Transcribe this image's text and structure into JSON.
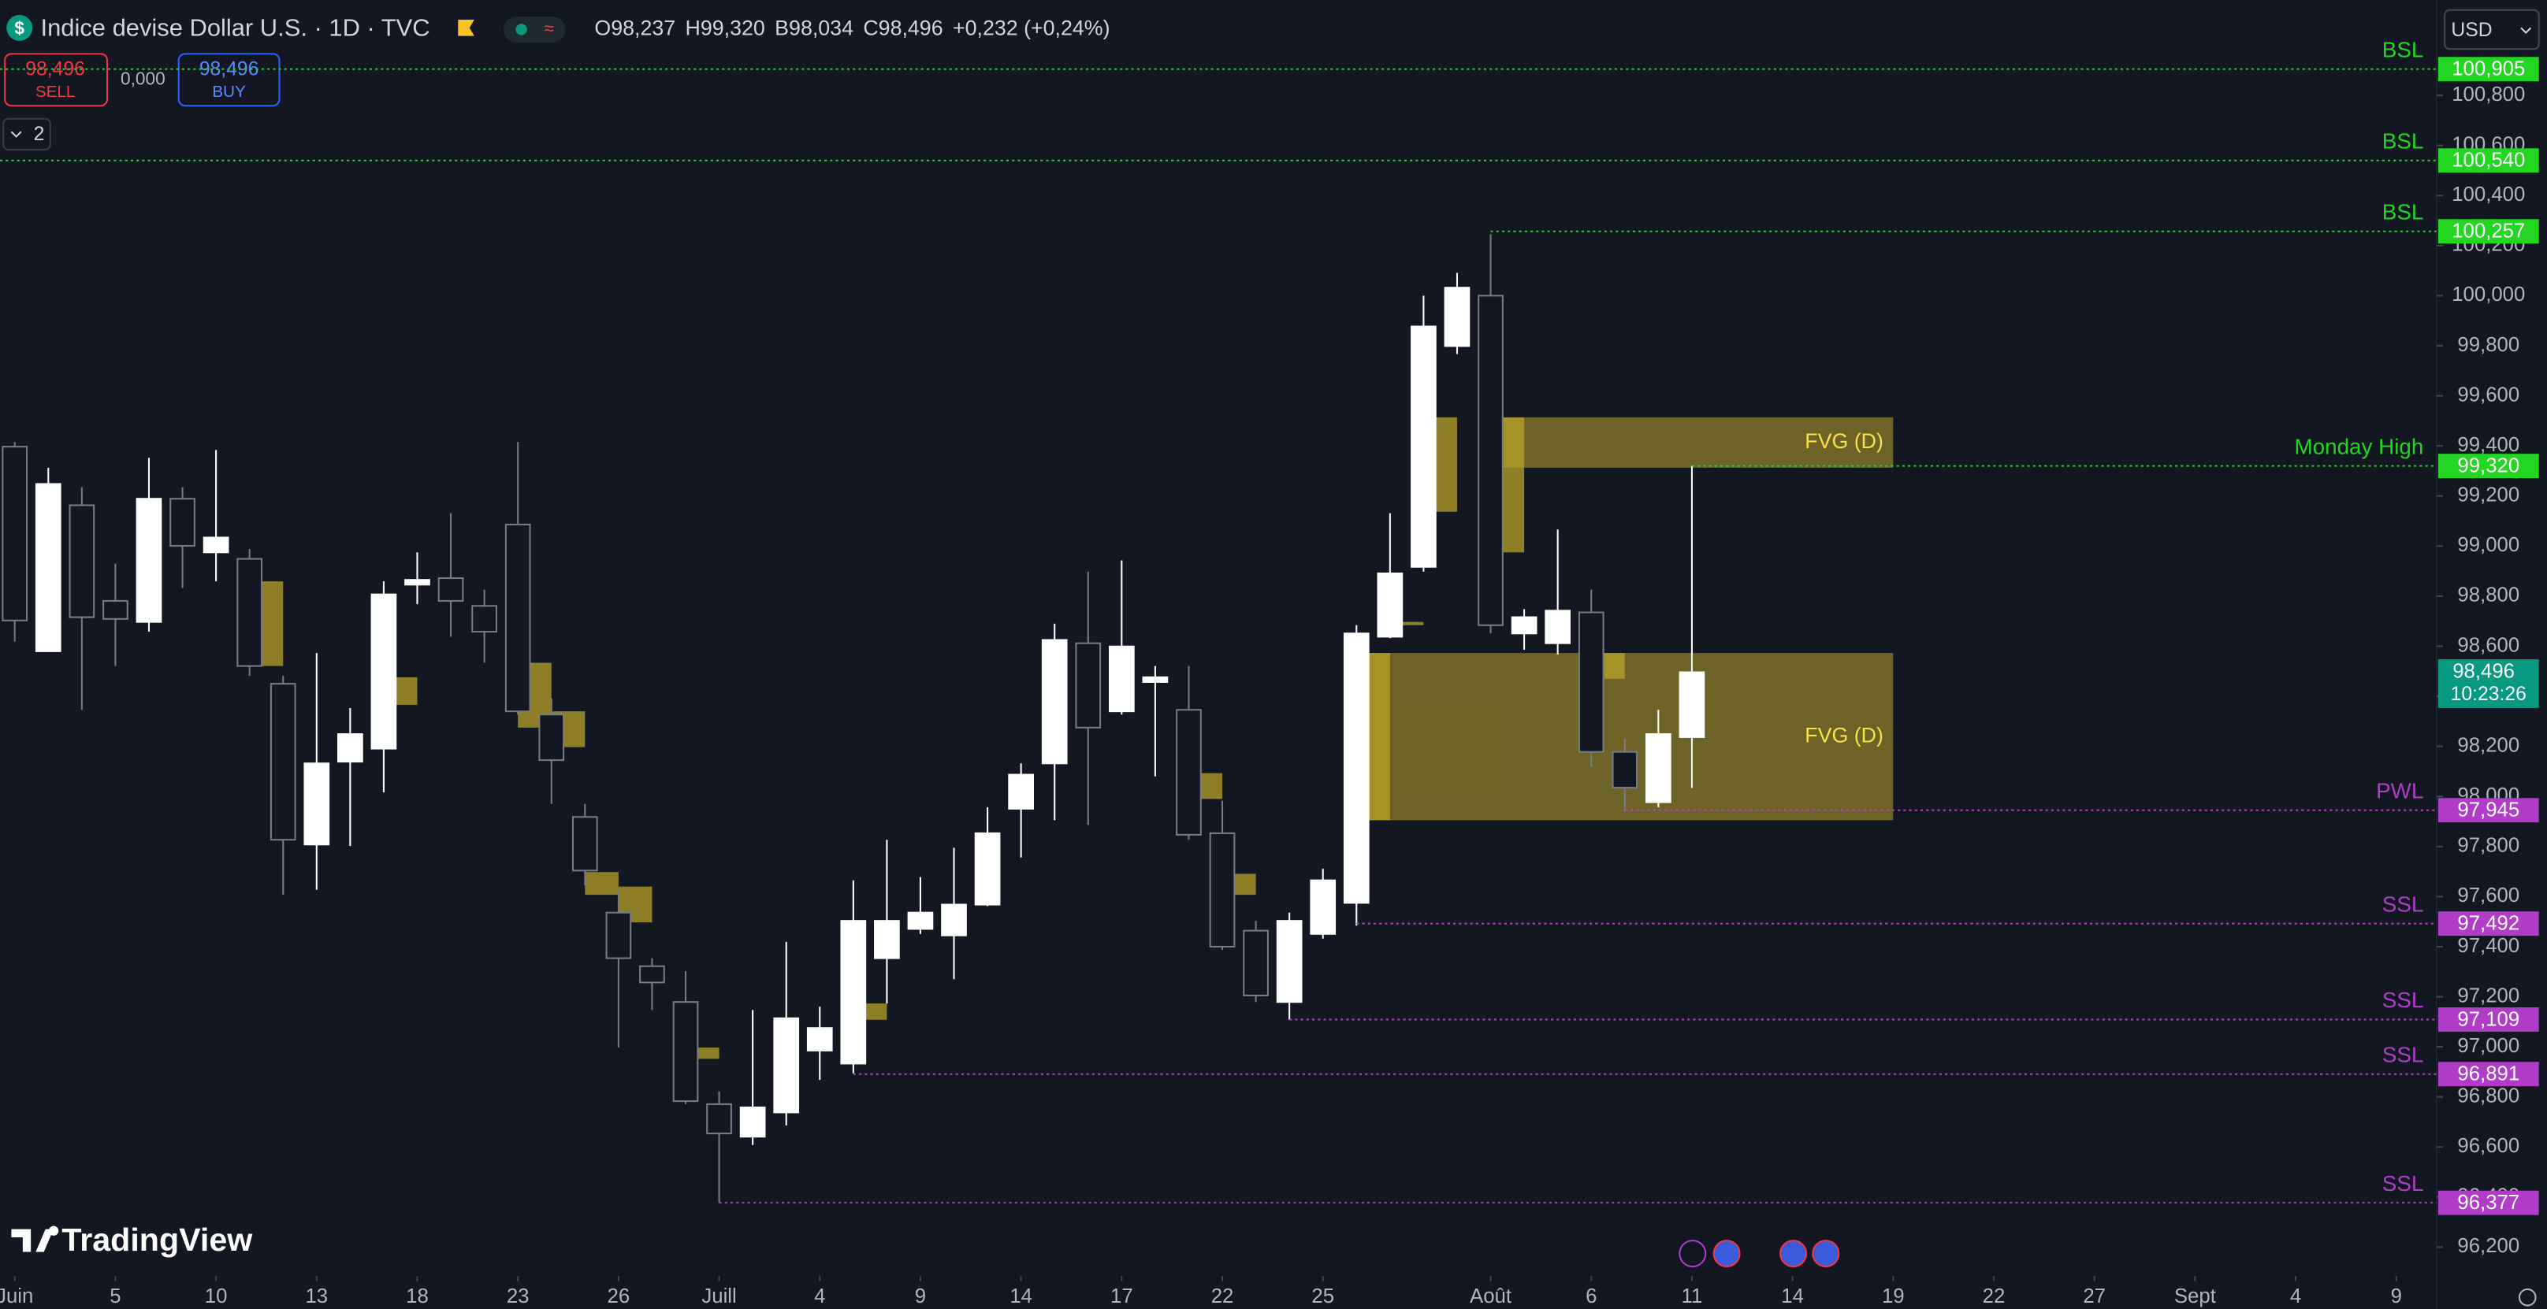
{
  "header": {
    "symbol": "Indice devise Dollar U.S. · 1D · TVC",
    "ohlc": [
      {
        "key": "O",
        "value": "98,237"
      },
      {
        "key": "H",
        "value": "99,320"
      },
      {
        "key": "B",
        "value": "98,034"
      },
      {
        "key": "C",
        "value": "98,496"
      }
    ],
    "change": "+0,232 (+0,24%)",
    "sell_price": "98,496",
    "sell": "SELL",
    "spread": "0,000",
    "buy_price": "98,496",
    "buy": "BUY",
    "indicators": "2",
    "currency": "USD"
  },
  "watermark": "TradingView",
  "chart_data": {
    "type": "candlestick",
    "up_color": "#ffffff",
    "down_color": "#787b86",
    "grid": false,
    "xlim": [
      -0.44,
      72.2
    ],
    "ylim": [
      96090,
      101180
    ],
    "xticks": [
      {
        "value": 0,
        "label": "Juin"
      },
      {
        "value": 3,
        "label": "5"
      },
      {
        "value": 6,
        "label": "10"
      },
      {
        "value": 9,
        "label": "13"
      },
      {
        "value": 12,
        "label": "18"
      },
      {
        "value": 15,
        "label": "23"
      },
      {
        "value": 18,
        "label": "26"
      },
      {
        "value": 21,
        "label": "Juill"
      },
      {
        "value": 24,
        "label": "4"
      },
      {
        "value": 27,
        "label": "9"
      },
      {
        "value": 30,
        "label": "14"
      },
      {
        "value": 33,
        "label": "17"
      },
      {
        "value": 36,
        "label": "22"
      },
      {
        "value": 39,
        "label": "25"
      },
      {
        "value": 44,
        "label": "Août"
      },
      {
        "value": 47,
        "label": "6"
      },
      {
        "value": 50,
        "label": "11"
      },
      {
        "value": 53,
        "label": "14"
      },
      {
        "value": 56,
        "label": "19"
      },
      {
        "value": 59,
        "label": "22"
      },
      {
        "value": 62,
        "label": "27"
      },
      {
        "value": 65,
        "label": "Sept"
      },
      {
        "value": 68,
        "label": "4"
      },
      {
        "value": 71,
        "label": "9"
      }
    ],
    "yticks": [
      {
        "value": 96200,
        "label": "96,200"
      },
      {
        "value": 96400,
        "label": "96,400"
      },
      {
        "value": 96600,
        "label": "96,600"
      },
      {
        "value": 96800,
        "label": "96,800"
      },
      {
        "value": 97000,
        "label": "97,000"
      },
      {
        "value": 97200,
        "label": "97,200"
      },
      {
        "value": 97400,
        "label": "97,400"
      },
      {
        "value": 97600,
        "label": "97,600"
      },
      {
        "value": 97800,
        "label": "97,800"
      },
      {
        "value": 98000,
        "label": "98,000"
      },
      {
        "value": 98200,
        "label": "98,200"
      },
      {
        "value": 98400,
        "label": "98,400"
      },
      {
        "value": 98600,
        "label": "98,600"
      },
      {
        "value": 98800,
        "label": "98,800"
      },
      {
        "value": 99000,
        "label": "99,000"
      },
      {
        "value": 99200,
        "label": "99,200"
      },
      {
        "value": 99400,
        "label": "99,400"
      },
      {
        "value": 99600,
        "label": "99,600"
      },
      {
        "value": 99800,
        "label": "99,800"
      },
      {
        "value": 100000,
        "label": "100,000"
      },
      {
        "value": 100200,
        "label": "100,200"
      },
      {
        "value": 100400,
        "label": "100,400"
      },
      {
        "value": 100600,
        "label": "100,600"
      },
      {
        "value": 100800,
        "label": "100,800"
      }
    ],
    "open": [
      99397,
      98580,
      99163,
      98781,
      98697,
      99189,
      98975,
      98949,
      98450,
      97808,
      98139,
      98191,
      98846,
      98872,
      98761,
      99086,
      98327,
      97918,
      97536,
      97322,
      97179,
      96771,
      96641,
      96738,
      96985,
      96933,
      97354,
      97471,
      97445,
      97568,
      97951,
      98132,
      98612,
      98340,
      98457,
      98346,
      97853,
      97464,
      97179,
      97451,
      97575,
      98638,
      98917,
      99799,
      100000,
      98651,
      98612,
      98735,
      98178,
      97977,
      98237
    ],
    "high": [
      99416,
      99313,
      99235,
      98930,
      99352,
      99235,
      99384,
      98988,
      98482,
      98573,
      98353,
      98859,
      98975,
      99131,
      98826,
      99416,
      98392,
      97970,
      97627,
      97354,
      97302,
      96822,
      97147,
      97419,
      97160,
      97665,
      97827,
      97678,
      97795,
      97957,
      98132,
      98690,
      98898,
      98943,
      98521,
      98521,
      97983,
      97503,
      97536,
      97711,
      98684,
      99131,
      100000,
      100091,
      100246,
      98748,
      99066,
      98826,
      98230,
      98346,
      99320
    ],
    "low": [
      98619,
      98580,
      98346,
      98521,
      98658,
      98833,
      98859,
      98482,
      97607,
      97627,
      97802,
      98016,
      98768,
      98638,
      98534,
      98327,
      97970,
      97646,
      96997,
      97147,
      96771,
      96377,
      96608,
      96686,
      96868,
      96894,
      97173,
      97451,
      97270,
      97562,
      97756,
      97905,
      97886,
      98327,
      98080,
      97827,
      97387,
      97179,
      97108,
      97432,
      97484,
      98632,
      98898,
      99767,
      98651,
      98586,
      98567,
      98119,
      97938,
      97957,
      98034
    ],
    "close": [
      98703,
      99248,
      98716,
      98709,
      99189,
      99001,
      99034,
      98521,
      97827,
      98132,
      98249,
      98807,
      98865,
      98781,
      98658,
      98340,
      98145,
      97704,
      97354,
      97257,
      96783,
      96654,
      96758,
      97114,
      97075,
      97503,
      97503,
      97536,
      97568,
      97853,
      98087,
      98625,
      98275,
      98599,
      98476,
      97847,
      97400,
      97205,
      97503,
      97665,
      98651,
      98891,
      99877,
      100032,
      98684,
      98716,
      98742,
      98178,
      98035,
      98249,
      98496
    ],
    "zones": [
      {
        "from": 44,
        "to": 56,
        "top": 99514,
        "bottom": 99313,
        "label": "FVG (D)"
      },
      {
        "from": 40,
        "to": 56,
        "top": 98573,
        "bottom": 97905,
        "label": "FVG (D)"
      }
    ],
    "gaps": [
      {
        "from": 7,
        "to": 8,
        "top": 98859,
        "bottom": 98521
      },
      {
        "from": 11,
        "to": 12,
        "top": 98476,
        "bottom": 98366
      },
      {
        "from": 15,
        "to": 16,
        "top": 98534,
        "bottom": 98275
      },
      {
        "from": 16,
        "to": 17,
        "top": 98340,
        "bottom": 98197
      },
      {
        "from": 17,
        "to": 18,
        "top": 97698,
        "bottom": 97607
      },
      {
        "from": 18,
        "to": 19,
        "top": 97640,
        "bottom": 97497
      },
      {
        "from": 20,
        "to": 21,
        "top": 96997,
        "bottom": 96952
      },
      {
        "from": 25,
        "to": 26,
        "top": 97173,
        "bottom": 97108
      },
      {
        "from": 35,
        "to": 36,
        "top": 98093,
        "bottom": 97990
      },
      {
        "from": 36,
        "to": 37,
        "top": 97691,
        "bottom": 97607
      },
      {
        "from": 41,
        "to": 42,
        "top": 98697,
        "bottom": 98684
      },
      {
        "from": 42,
        "to": 43,
        "top": 99514,
        "bottom": 99137
      },
      {
        "from": 44,
        "to": 45,
        "top": 99514,
        "bottom": 98975
      },
      {
        "from": 40,
        "to": 41,
        "top": 98573,
        "bottom": 97905
      },
      {
        "from": 47,
        "to": 48,
        "top": 98573,
        "bottom": 98470
      }
    ],
    "zone_color": "#b8a32a",
    "levels": [
      {
        "name": "BSL",
        "value": 100905,
        "label": "100,905",
        "from": -0.44,
        "color": "#22d622"
      },
      {
        "name": "BSL",
        "value": 100540,
        "label": "100,540",
        "from": -0.44,
        "color": "#22d622"
      },
      {
        "name": "BSL",
        "value": 100257,
        "label": "100,257",
        "from": 44,
        "color": "#22d622"
      },
      {
        "name": "Monday High",
        "value": 99320,
        "label": "99,320",
        "from": 50,
        "color": "#22d622"
      },
      {
        "name": "PWL",
        "value": 97945,
        "label": "97,945",
        "from": 48,
        "color": "#b03cc8"
      },
      {
        "name": "SSL",
        "value": 97492,
        "label": "97,492",
        "from": 40,
        "color": "#b03cc8"
      },
      {
        "name": "SSL",
        "value": 97109,
        "label": "97,109",
        "from": 38,
        "color": "#b03cc8"
      },
      {
        "name": "SSL",
        "value": 96891,
        "label": "96,891",
        "from": 25,
        "color": "#b03cc8"
      },
      {
        "name": "SSL",
        "value": 96377,
        "label": "96,377",
        "from": 21,
        "color": "#b03cc8"
      }
    ],
    "last_price": {
      "value": 98496,
      "label": "98,496",
      "countdown": "10:23:26",
      "color": "#089981"
    }
  }
}
